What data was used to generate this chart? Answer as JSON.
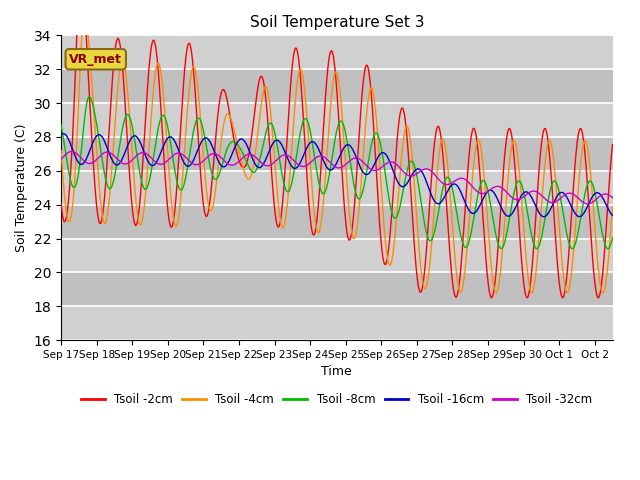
{
  "title": "Soil Temperature Set 3",
  "xlabel": "Time",
  "ylabel": "Soil Temperature (C)",
  "ylim": [
    16,
    34
  ],
  "yticks": [
    16,
    18,
    20,
    22,
    24,
    26,
    28,
    30,
    32,
    34
  ],
  "background_color": "#ffffff",
  "plot_bg_color": "#dcdcdc",
  "grid_color": "#ffffff",
  "annotation_text": "VR_met",
  "annotation_box_color": "#e8d840",
  "annotation_text_color": "#8B0000",
  "series_colors": {
    "Tsoil -2cm": "#ff0000",
    "Tsoil -4cm": "#ff8c00",
    "Tsoil -8cm": "#00bb00",
    "Tsoil -16cm": "#0000cc",
    "Tsoil -32cm": "#cc00cc"
  },
  "tick_labels": [
    "Sep 17",
    "Sep 18",
    "Sep 19",
    "Sep 20",
    "Sep 21",
    "Sep 22",
    "Sep 23",
    "Sep 24",
    "Sep 25",
    "Sep 26",
    "Sep 27",
    "Sep 28",
    "Sep 29",
    "Sep 30",
    "Oct 1",
    "Oct 2"
  ]
}
